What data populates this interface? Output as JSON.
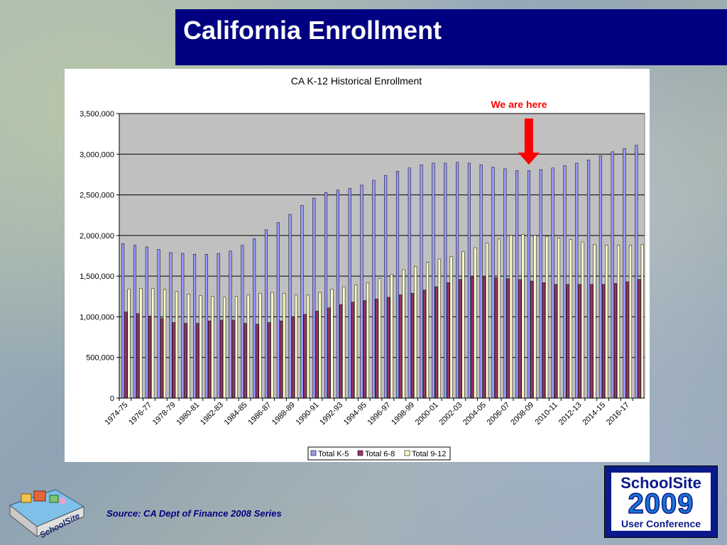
{
  "slide": {
    "title": "California Enrollment",
    "source": "Source:  CA Dept of Finance  2008 Series",
    "annotation": "We are here"
  },
  "logos": {
    "left_text": "SchoolSite",
    "right_line1": "SchoolSite",
    "right_line2": "2009",
    "right_line3": "User Conference"
  },
  "colors": {
    "title_bar": "#000080",
    "plot_bg": "#c0c0c0",
    "k5": "#9999ff",
    "g68": "#993366",
    "g912": "#ffffcc",
    "annotation": "#ff0000"
  },
  "chart_data": {
    "type": "bar",
    "title": "CA K-12 Historical Enrollment",
    "xlabel": "",
    "ylabel": "",
    "ylim": [
      0,
      3500000
    ],
    "yticks": [
      0,
      500000,
      1000000,
      1500000,
      2000000,
      2500000,
      3000000,
      3500000
    ],
    "ytick_labels": [
      "0",
      "500,000",
      "1,000,000",
      "1,500,000",
      "2,000,000",
      "2,500,000",
      "3,000,000",
      "3,500,000"
    ],
    "grid": true,
    "legend_position": "bottom",
    "annotated_category": "2008-09",
    "categories": [
      "1974-75",
      "1975-76",
      "1976-77",
      "1977-78",
      "1978-79",
      "1979-80",
      "1980-81",
      "1981-82",
      "1982-83",
      "1983-84",
      "1984-85",
      "1985-86",
      "1986-87",
      "1987-88",
      "1988-89",
      "1989-90",
      "1990-91",
      "1991-92",
      "1992-93",
      "1993-94",
      "1994-95",
      "1995-96",
      "1996-97",
      "1997-98",
      "1998-99",
      "1999-00",
      "2000-01",
      "2001-02",
      "2002-03",
      "2003-04",
      "2004-05",
      "2005-06",
      "2006-07",
      "2007-08",
      "2008-09",
      "2009-10",
      "2010-11",
      "2011-12",
      "2012-13",
      "2013-14",
      "2014-15",
      "2015-16",
      "2016-17",
      "2017-18"
    ],
    "tick_labels": [
      "1974-75",
      "",
      "1976-77",
      "",
      "1978-79",
      "",
      "1980-81",
      "",
      "1982-83",
      "",
      "1984-85",
      "",
      "1986-87",
      "",
      "1988-89",
      "",
      "1990-91",
      "",
      "1992-93",
      "",
      "1994-95",
      "",
      "1996-97",
      "",
      "1998-99",
      "",
      "2000-01",
      "",
      "2002-03",
      "",
      "2004-05",
      "",
      "2006-07",
      "",
      "2008-09",
      "",
      "2010-11",
      "",
      "2012-13",
      "",
      "2014-15",
      "",
      "2016-17",
      ""
    ],
    "series": [
      {
        "name": "Total K-5",
        "values": [
          1900000,
          1880000,
          1860000,
          1830000,
          1790000,
          1780000,
          1770000,
          1770000,
          1780000,
          1810000,
          1880000,
          1960000,
          2070000,
          2160000,
          2260000,
          2370000,
          2460000,
          2530000,
          2560000,
          2580000,
          2620000,
          2680000,
          2740000,
          2790000,
          2830000,
          2870000,
          2890000,
          2890000,
          2900000,
          2890000,
          2870000,
          2840000,
          2820000,
          2800000,
          2800000,
          2810000,
          2830000,
          2860000,
          2890000,
          2930000,
          2980000,
          3030000,
          3070000,
          3110000
        ]
      },
      {
        "name": "Total 6-8",
        "values": [
          1060000,
          1040000,
          1010000,
          980000,
          930000,
          920000,
          920000,
          950000,
          960000,
          960000,
          920000,
          910000,
          930000,
          950000,
          1000000,
          1030000,
          1070000,
          1110000,
          1150000,
          1180000,
          1200000,
          1220000,
          1240000,
          1270000,
          1290000,
          1330000,
          1370000,
          1420000,
          1460000,
          1490000,
          1490000,
          1480000,
          1470000,
          1460000,
          1440000,
          1420000,
          1400000,
          1400000,
          1400000,
          1400000,
          1400000,
          1410000,
          1430000,
          1460000
        ]
      },
      {
        "name": "Total 9-12",
        "values": [
          1340000,
          1350000,
          1350000,
          1340000,
          1310000,
          1280000,
          1260000,
          1250000,
          1240000,
          1250000,
          1270000,
          1290000,
          1300000,
          1290000,
          1270000,
          1270000,
          1300000,
          1340000,
          1370000,
          1390000,
          1420000,
          1470000,
          1520000,
          1580000,
          1620000,
          1670000,
          1710000,
          1740000,
          1800000,
          1850000,
          1910000,
          1960000,
          2000000,
          2010000,
          2000000,
          1990000,
          1970000,
          1950000,
          1920000,
          1890000,
          1880000,
          1880000,
          1880000,
          1890000
        ]
      }
    ]
  }
}
